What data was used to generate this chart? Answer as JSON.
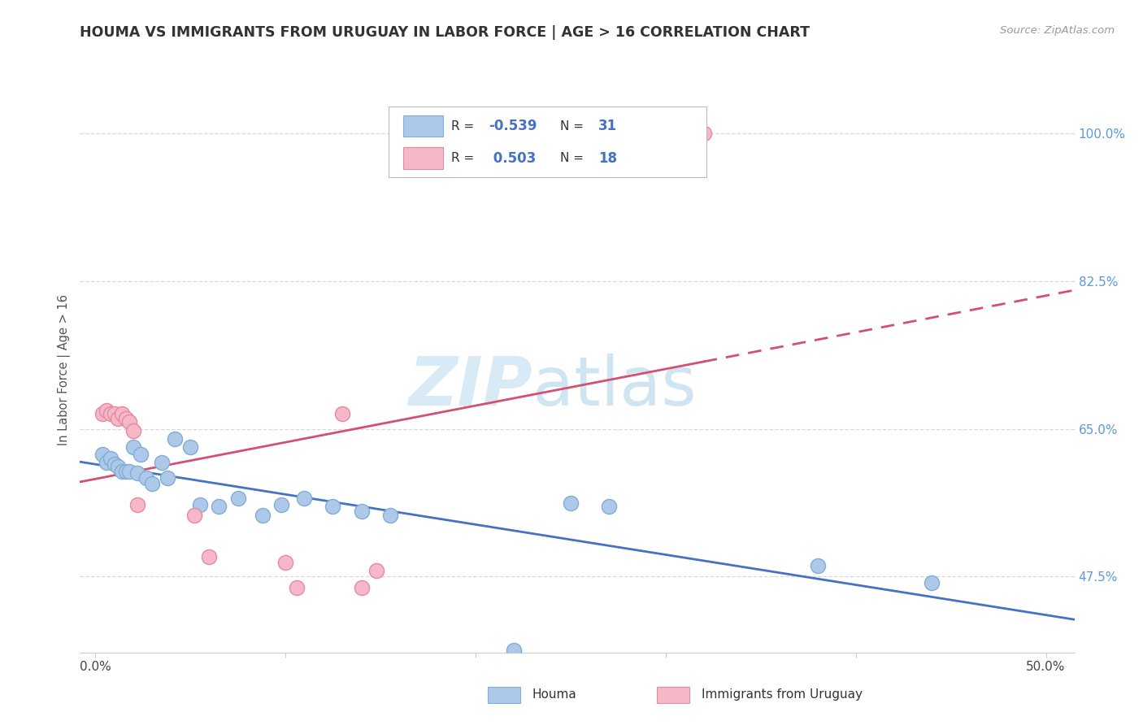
{
  "title": "HOUMA VS IMMIGRANTS FROM URUGUAY IN LABOR FORCE | AGE > 16 CORRELATION CHART",
  "source": "Source: ZipAtlas.com",
  "xlabel_vals": [
    0.0,
    0.1,
    0.2,
    0.3,
    0.4,
    0.5
  ],
  "xlabel_ticks": [
    "0.0%",
    "",
    "",
    "",
    "",
    "50.0%"
  ],
  "ylabel_vals": [
    0.475,
    0.65,
    0.825,
    1.0
  ],
  "ylabel_ticks": [
    "47.5%",
    "65.0%",
    "82.5%",
    "100.0%"
  ],
  "ylabel_label": "In Labor Force | Age > 16",
  "xlim": [
    -0.008,
    0.515
  ],
  "ylim": [
    0.385,
    1.055
  ],
  "houma_R": "-0.539",
  "houma_N": "31",
  "uruguay_R": "0.503",
  "uruguay_N": "18",
  "houma_color": "#adc8e8",
  "houma_edge_color": "#80aed4",
  "uruguay_color": "#f5b8c8",
  "uruguay_edge_color": "#e888a0",
  "houma_line_color": "#4472c4",
  "uruguay_line_color": "#d45070",
  "watermark_zip_color": "#c5e0f0",
  "watermark_atlas_color": "#b8d8ec",
  "houma_x": [
    0.004,
    0.006,
    0.008,
    0.01,
    0.012,
    0.014,
    0.016,
    0.018,
    0.02,
    0.022,
    0.024,
    0.027,
    0.03,
    0.035,
    0.038,
    0.042,
    0.05,
    0.055,
    0.065,
    0.075,
    0.088,
    0.098,
    0.11,
    0.125,
    0.14,
    0.155,
    0.22,
    0.25,
    0.27,
    0.38,
    0.44
  ],
  "houma_y": [
    0.62,
    0.61,
    0.615,
    0.608,
    0.605,
    0.6,
    0.6,
    0.6,
    0.628,
    0.598,
    0.62,
    0.592,
    0.585,
    0.61,
    0.592,
    0.638,
    0.628,
    0.56,
    0.558,
    0.568,
    0.548,
    0.56,
    0.568,
    0.558,
    0.552,
    0.548,
    0.388,
    0.562,
    0.558,
    0.488,
    0.468
  ],
  "uruguay_x": [
    0.004,
    0.006,
    0.008,
    0.01,
    0.012,
    0.014,
    0.016,
    0.018,
    0.02,
    0.022,
    0.052,
    0.06,
    0.1,
    0.106,
    0.13,
    0.14,
    0.148,
    0.32
  ],
  "uruguay_y": [
    0.668,
    0.672,
    0.668,
    0.668,
    0.662,
    0.668,
    0.662,
    0.658,
    0.648,
    0.56,
    0.548,
    0.498,
    0.492,
    0.462,
    0.668,
    0.462,
    0.482,
    1.0
  ],
  "legend_label_houma": "Houma",
  "legend_label_uruguay": "Immigrants from Uruguay"
}
